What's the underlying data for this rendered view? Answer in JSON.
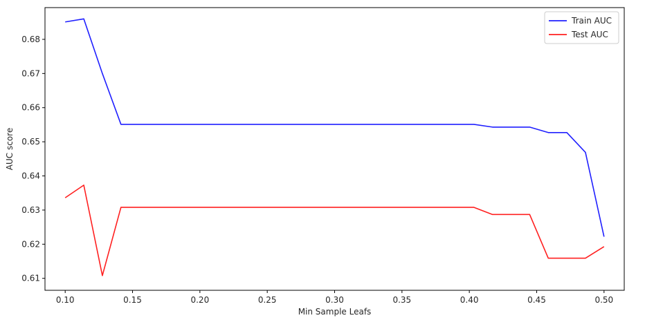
{
  "chart_data": {
    "type": "line",
    "xlabel": "Min Sample Leafs",
    "ylabel": "AUC score",
    "xlim": [
      0.085,
      0.515
    ],
    "ylim": [
      0.6065,
      0.6893
    ],
    "x_ticks": [
      0.1,
      0.15,
      0.2,
      0.25,
      0.3,
      0.35,
      0.4,
      0.45,
      0.5
    ],
    "x_tick_labels": [
      "0.10",
      "0.15",
      "0.20",
      "0.25",
      "0.30",
      "0.35",
      "0.40",
      "0.45",
      "0.50"
    ],
    "y_ticks": [
      0.61,
      0.62,
      0.63,
      0.64,
      0.65,
      0.66,
      0.67,
      0.68
    ],
    "y_tick_labels": [
      "0.61",
      "0.62",
      "0.63",
      "0.64",
      "0.65",
      "0.66",
      "0.67",
      "0.68"
    ],
    "legend_position": "top-right",
    "grid": false,
    "x": [
      0.1,
      0.1138,
      0.1276,
      0.1414,
      0.1552,
      0.169,
      0.1828,
      0.1966,
      0.2103,
      0.2241,
      0.2379,
      0.2517,
      0.2655,
      0.2793,
      0.2931,
      0.3069,
      0.3207,
      0.3345,
      0.3483,
      0.3621,
      0.3759,
      0.3897,
      0.4034,
      0.4172,
      0.431,
      0.4448,
      0.4586,
      0.4724,
      0.4862,
      0.5
    ],
    "series": [
      {
        "name": "Train AUC",
        "color": "#1f1fff",
        "values": [
          0.6851,
          0.686,
          0.67,
          0.6551,
          0.6551,
          0.6551,
          0.6551,
          0.6551,
          0.6551,
          0.6551,
          0.6551,
          0.6551,
          0.6551,
          0.6551,
          0.6551,
          0.6551,
          0.6551,
          0.6551,
          0.6551,
          0.6551,
          0.6551,
          0.6551,
          0.6551,
          0.6543,
          0.6543,
          0.6543,
          0.6527,
          0.6527,
          0.6469,
          0.6222
        ]
      },
      {
        "name": "Test AUC",
        "color": "#ff1f1f",
        "values": [
          0.6336,
          0.6373,
          0.6108,
          0.6308,
          0.6308,
          0.6308,
          0.6308,
          0.6308,
          0.6308,
          0.6308,
          0.6308,
          0.6308,
          0.6308,
          0.6308,
          0.6308,
          0.6308,
          0.6308,
          0.6308,
          0.6308,
          0.6308,
          0.6308,
          0.6308,
          0.6308,
          0.6287,
          0.6287,
          0.6287,
          0.6159,
          0.6159,
          0.6159,
          0.6193
        ]
      }
    ]
  }
}
